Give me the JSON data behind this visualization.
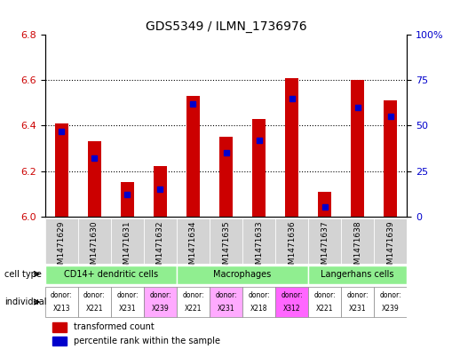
{
  "title": "GDS5349 / ILMN_1736976",
  "samples": [
    "GSM1471629",
    "GSM1471630",
    "GSM1471631",
    "GSM1471632",
    "GSM1471634",
    "GSM1471635",
    "GSM1471633",
    "GSM1471636",
    "GSM1471637",
    "GSM1471638",
    "GSM1471639"
  ],
  "red_values": [
    6.41,
    6.33,
    6.15,
    6.22,
    6.53,
    6.35,
    6.43,
    6.61,
    6.11,
    6.6,
    6.51
  ],
  "blue_values_pct": [
    47,
    32,
    12,
    15,
    62,
    35,
    42,
    65,
    5,
    60,
    55
  ],
  "ylim_left": [
    6.0,
    6.8
  ],
  "ylim_right": [
    0,
    100
  ],
  "yticks_left": [
    6.0,
    6.2,
    6.4,
    6.6,
    6.8
  ],
  "yticks_right": [
    0,
    25,
    50,
    75,
    100
  ],
  "ytick_labels_right": [
    "0",
    "25",
    "50",
    "75",
    "100%"
  ],
  "cell_types": [
    {
      "label": "CD14+ dendritic cells",
      "start": 0,
      "end": 4,
      "color": "#90ee90"
    },
    {
      "label": "Macrophages",
      "start": 4,
      "end": 8,
      "color": "#90ee90"
    },
    {
      "label": "Langerhans cells",
      "start": 8,
      "end": 11,
      "color": "#90ee90"
    }
  ],
  "individuals": [
    {
      "donor": "X213",
      "col": 0,
      "color": "#ffffff"
    },
    {
      "donor": "X221",
      "col": 1,
      "color": "#ffffff"
    },
    {
      "donor": "X231",
      "col": 2,
      "color": "#ffffff"
    },
    {
      "donor": "X239",
      "col": 3,
      "color": "#ffaaff"
    },
    {
      "donor": "X221",
      "col": 4,
      "color": "#ffffff"
    },
    {
      "donor": "X231",
      "col": 5,
      "color": "#ffaaff"
    },
    {
      "donor": "X218",
      "col": 6,
      "color": "#ffffff"
    },
    {
      "donor": "X312",
      "col": 7,
      "color": "#ff88ff"
    },
    {
      "donor": "X221",
      "col": 8,
      "color": "#ffffff"
    },
    {
      "donor": "X231",
      "col": 9,
      "color": "#ffffff"
    },
    {
      "donor": "X239",
      "col": 10,
      "color": "#ffffff"
    }
  ],
  "bar_width": 0.4,
  "red_color": "#cc0000",
  "blue_color": "#0000cc",
  "grid_color": "#000000",
  "bg_color": "#ffffff",
  "label_color_left": "#cc0000",
  "label_color_right": "#0000cc"
}
